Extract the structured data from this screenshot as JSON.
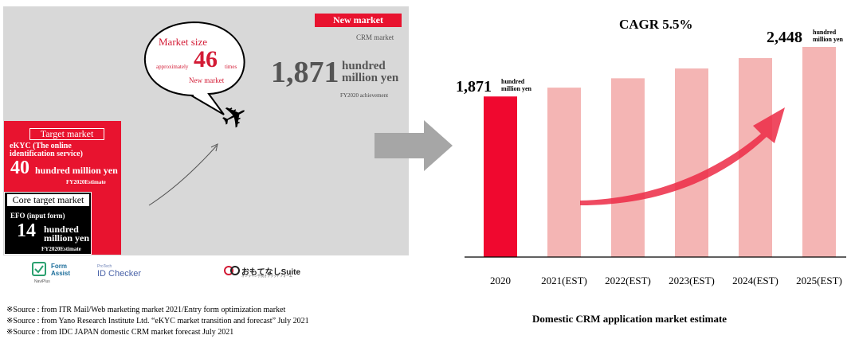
{
  "left_panel": {
    "new_market_tag": "New market",
    "crm_label": "CRM market",
    "crm_value": "1,871",
    "crm_unit_line1": "hundred",
    "crm_unit_line2": "million yen",
    "crm_note": "FY2020 achievement",
    "bubble": {
      "title": "Market size",
      "approx": "approximately",
      "multiple": "46",
      "times": "times",
      "new_market": "New market"
    },
    "target": {
      "heading": "Target market",
      "service": "eKYC (The online identification service)",
      "value": "40",
      "unit": "hundred million yen",
      "estimate": "FY2020Estimate"
    },
    "core": {
      "heading": "Core target market",
      "service": "EFO (input form)",
      "value": "14",
      "unit_line1": "hundred",
      "unit_line2": "million yen",
      "estimate": "FY2020Estimate"
    },
    "logos": {
      "form_assist_line1": "Form",
      "form_assist_line2": "Assist",
      "form_assist_sub": "NaviPlus",
      "id_checker_small": "ProTech",
      "id_checker_main": "ID Checker",
      "omotenashi_main": "おもてなしSuite",
      "omotenashi_sub": "オンライン手続きプラットフォーム"
    },
    "sources": [
      "※Source : from ITR Mail/Web marketing market 2021/Entry form optimization market",
      "※Source : from Yano Research Institute Ltd. “eKYC market transition and forecast” July 2021",
      "※Source : from IDC JAPAN domestic CRM market forecast July 2021"
    ]
  },
  "chart_data": {
    "type": "bar",
    "title": "Domestic CRM  application market estimate",
    "annotation": "CAGR 5.5%",
    "categories": [
      "2020",
      "2021(EST)",
      "2022(EST)",
      "2023(EST)",
      "2024(EST)",
      "2025(EST)"
    ],
    "values": [
      1871,
      1974,
      2083,
      2197,
      2318,
      2448
    ],
    "highlight_index": 0,
    "ylim": [
      0,
      2448
    ],
    "grid": false,
    "data_labels": [
      {
        "index": 0,
        "value": "1,871",
        "unit_line1": "hundred",
        "unit_line2": "million yen"
      },
      {
        "index": 5,
        "value": "2,448",
        "unit_line1": "hundred",
        "unit_line2": "million yen"
      }
    ],
    "colors": {
      "highlight": "#f0082f",
      "other": "#f4b5b4",
      "arrow": "#ec2a45"
    }
  },
  "colors": {
    "accent": "#e8132f",
    "panel": "#d8d8d8",
    "muted_text": "#555555"
  }
}
